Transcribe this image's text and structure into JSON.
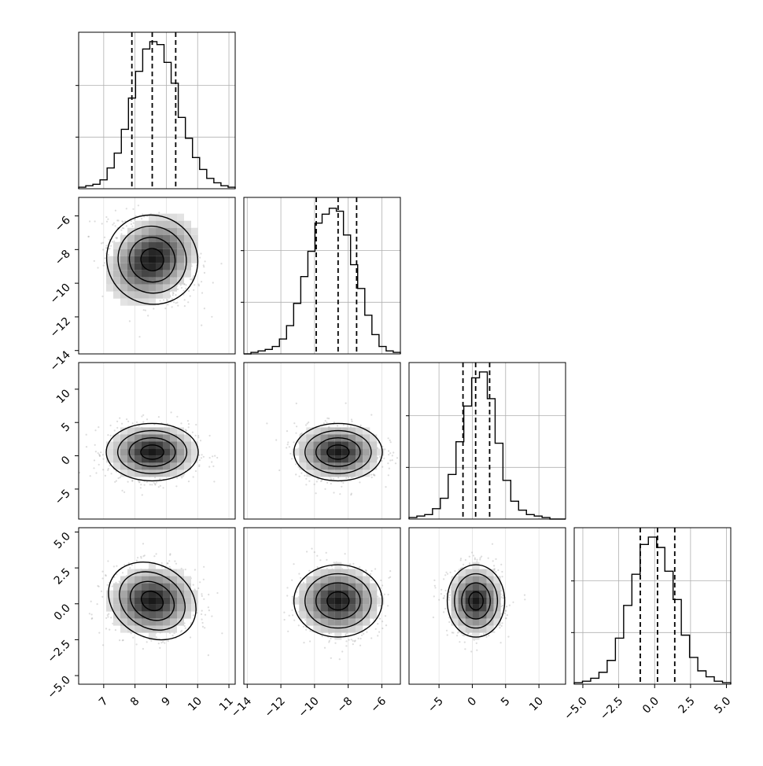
{
  "chart_data": {
    "type": "corner",
    "grid": true,
    "colors": {
      "line": "#000000",
      "grid": "#b0b0b0",
      "points": "#9a9a9a"
    },
    "parameters": [
      {
        "index": 0,
        "range": [
          6.2,
          11.2
        ],
        "ticks": [
          7,
          8,
          9,
          10,
          11
        ],
        "tick_labels": [
          "7",
          "8",
          "9",
          "10",
          "11"
        ],
        "quantiles": [
          7.9,
          8.55,
          9.3
        ],
        "center": 8.55,
        "sigma": 0.7
      },
      {
        "index": 1,
        "range": [
          -14.2,
          -4.9
        ],
        "ticks": [
          -14,
          -12,
          -10,
          -8,
          -6
        ],
        "tick_labels": [
          "−14",
          "−12",
          "−10",
          "−8",
          "−6"
        ],
        "quantiles": [
          -9.9,
          -8.6,
          -7.5
        ],
        "center": -8.6,
        "sigma": 1.25
      },
      {
        "index": 2,
        "range": [
          -9.5,
          14.0
        ],
        "ticks": [
          -5,
          0,
          5,
          10
        ],
        "tick_labels": [
          "−5",
          "0",
          "5",
          "10"
        ],
        "quantiles": [
          -1.4,
          0.5,
          2.6
        ],
        "center": 0.55,
        "sigma": 2.05
      },
      {
        "index": 3,
        "range": [
          -5.6,
          5.3
        ],
        "ticks": [
          -5.0,
          -2.5,
          0.0,
          2.5,
          5.0
        ],
        "tick_labels": [
          "−5.0",
          "−2.5",
          "0.0",
          "2.5",
          "5.0"
        ],
        "quantiles": [
          -1.0,
          0.2,
          1.4
        ],
        "center": 0.2,
        "sigma": 1.2
      }
    ],
    "histograms": [
      {
        "param": 0,
        "counts": [
          0.01,
          0.02,
          0.03,
          0.06,
          0.14,
          0.24,
          0.4,
          0.61,
          0.79,
          0.94,
          0.99,
          0.97,
          0.85,
          0.71,
          0.48,
          0.34,
          0.21,
          0.13,
          0.07,
          0.04,
          0.02,
          0.01
        ]
      },
      {
        "param": 1,
        "counts": [
          0.0,
          0.01,
          0.02,
          0.03,
          0.05,
          0.1,
          0.19,
          0.34,
          0.52,
          0.69,
          0.88,
          0.94,
          0.98,
          0.96,
          0.8,
          0.6,
          0.44,
          0.26,
          0.13,
          0.05,
          0.02,
          0.01
        ]
      },
      {
        "param": 2,
        "counts": [
          0.01,
          0.02,
          0.03,
          0.07,
          0.14,
          0.3,
          0.52,
          0.76,
          0.95,
          0.99,
          0.81,
          0.51,
          0.26,
          0.12,
          0.06,
          0.03,
          0.02,
          0.01,
          0.0,
          0.0
        ]
      },
      {
        "param": 3,
        "counts": [
          0.01,
          0.02,
          0.04,
          0.08,
          0.16,
          0.31,
          0.53,
          0.74,
          0.94,
          0.99,
          0.92,
          0.76,
          0.57,
          0.33,
          0.18,
          0.09,
          0.05,
          0.02,
          0.01
        ]
      }
    ],
    "pairs": [
      {
        "row": 1,
        "col": 0,
        "correlation": -0.3
      },
      {
        "row": 2,
        "col": 0,
        "correlation": 0.0
      },
      {
        "row": 2,
        "col": 1,
        "correlation": 0.0
      },
      {
        "row": 3,
        "col": 0,
        "correlation": -0.05
      },
      {
        "row": 3,
        "col": 1,
        "correlation": 0.0
      },
      {
        "row": 3,
        "col": 2,
        "correlation": 0.0
      }
    ],
    "contour_levels_sigma": [
      0.5,
      1.0,
      1.5,
      2.0
    ]
  }
}
